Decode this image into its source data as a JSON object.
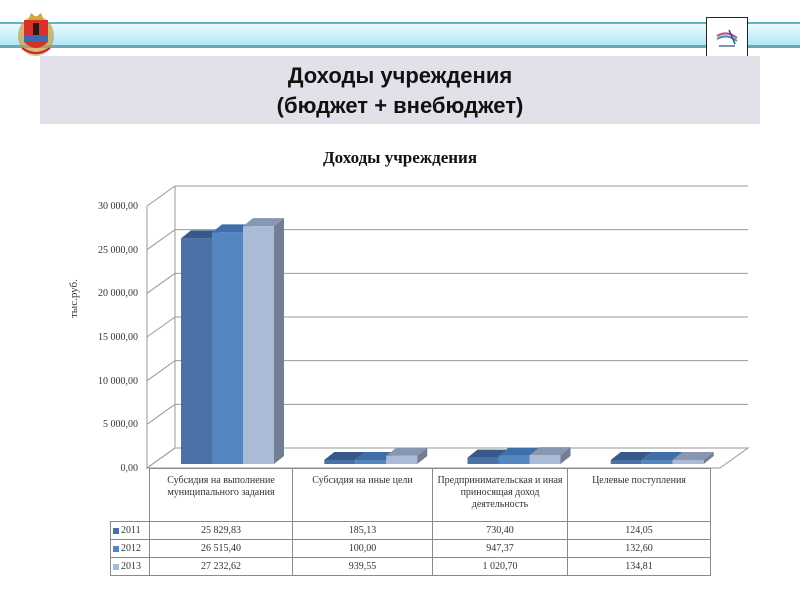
{
  "slide": {
    "title_line1": "Доходы  учреждения",
    "title_line2": "(бюджет + внебюджет)",
    "left_logo": "coat-of-arms",
    "right_logo": "emblem-logo"
  },
  "colors": {
    "series_2011": "#4a72a6",
    "series_2012": "#5487c2",
    "series_2013": "#aabbd8",
    "band": "#c9f0fb",
    "title_bg": "#e3e0ea"
  },
  "chart_data": {
    "type": "bar",
    "title": "Доходы учреждения",
    "xlabel": "",
    "ylabel": "тыс.руб.",
    "ylim": [
      0,
      30000
    ],
    "yticks": [
      "0,00",
      "5 000,00",
      "10 000,00",
      "15 000,00",
      "20 000,00",
      "25 000,00",
      "30 000,00"
    ],
    "grid": true,
    "legend_position": "data-table",
    "categories": [
      "Субсидия на выполнение муниципального задания",
      "Субсидия на иные цели",
      "Предпринимательская и иная приносящая доход деятельность",
      "Целевые поступления"
    ],
    "series": [
      {
        "name": "2011",
        "values": [
          25829.83,
          185.13,
          730.4,
          124.05
        ],
        "labels": [
          "25 829,83",
          "185,13",
          "730,40",
          "124,05"
        ]
      },
      {
        "name": "2012",
        "values": [
          26515.4,
          100.0,
          947.37,
          132.6
        ],
        "labels": [
          "26 515,40",
          "100,00",
          "947,37",
          "132,60"
        ]
      },
      {
        "name": "2013",
        "values": [
          27232.62,
          939.55,
          1020.7,
          134.81
        ],
        "labels": [
          "27 232,62",
          "939,55",
          "1 020,70",
          "134,81"
        ]
      }
    ]
  }
}
